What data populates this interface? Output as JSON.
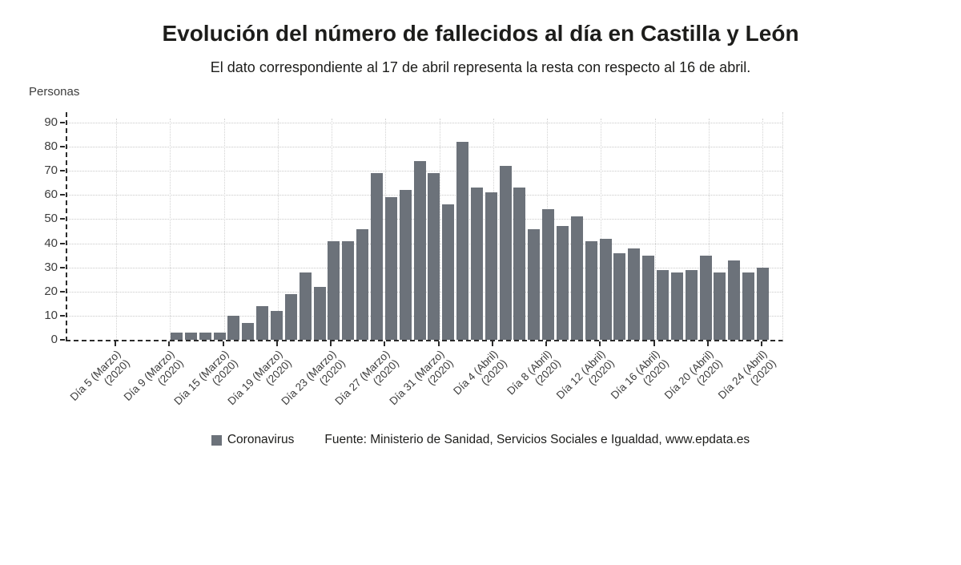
{
  "title": "Evolución del número de fallecidos al día en Castilla y León",
  "subtitle": "El dato correspondiente al 17 de abril representa la resta con respecto al 16 de abril.",
  "y_axis_title": "Personas",
  "legend": {
    "series_label": "Coronavirus",
    "source_text": "Fuente: Ministerio de Sanidad, Servicios Sociales e Igualdad, www.epdata.es"
  },
  "colors": {
    "bar": "#6C727A",
    "title_text": "#1d1d1b",
    "axis_text": "#3d3d3d",
    "gridline": "#c9c9c9",
    "axis_line": "#2b2b2b",
    "background": "#ffffff"
  },
  "chart_data": {
    "type": "bar",
    "title": "Evolución del número de fallecidos al día en Castilla y León",
    "subtitle": "El dato correspondiente al 17 de abril representa la resta con respecto al 16 de abril.",
    "ylabel": "Personas",
    "ylim": [
      0,
      90
    ],
    "y_ticks": [
      0,
      10,
      20,
      30,
      40,
      50,
      60,
      70,
      80,
      90
    ],
    "grid": true,
    "legend_position": "bottom",
    "leading_empty_slots": 4,
    "series": [
      {
        "name": "Coronavirus",
        "values": [
          3,
          3,
          3,
          3,
          10,
          7,
          14,
          12,
          19,
          28,
          22,
          41,
          41,
          46,
          69,
          59,
          62,
          74,
          69,
          56,
          82,
          63,
          61,
          72,
          63,
          46,
          54,
          47,
          51,
          41,
          42,
          36,
          38,
          35,
          29,
          28,
          29,
          35,
          28,
          33,
          28,
          30
        ]
      }
    ],
    "x_tick_labels": [
      {
        "label": "Día 5 (Marzo)",
        "year": "(2020)"
      },
      {
        "label": "Día 9 (Marzo)",
        "year": "(2020)"
      },
      {
        "label": "Día 15 (Marzo)",
        "year": "(2020)"
      },
      {
        "label": "Día 19 (Marzo)",
        "year": "(2020)"
      },
      {
        "label": "Día 23 (Marzo)",
        "year": "(2020)"
      },
      {
        "label": "Día 27 (Marzo)",
        "year": "(2020)"
      },
      {
        "label": "Día 31 (Marzo)",
        "year": "(2020)"
      },
      {
        "label": "Día 4 (Abril)",
        "year": "(2020)"
      },
      {
        "label": "Día 8 (Abril)",
        "year": "(2020)"
      },
      {
        "label": "Día 12 (Abril)",
        "year": "(2020)"
      },
      {
        "label": "Día 16 (Abril)",
        "year": "(2020)"
      },
      {
        "label": "Día 20 (Abril)",
        "year": "(2020)"
      },
      {
        "label": "Día 24 (Abril)",
        "year": "(2020)"
      }
    ]
  }
}
